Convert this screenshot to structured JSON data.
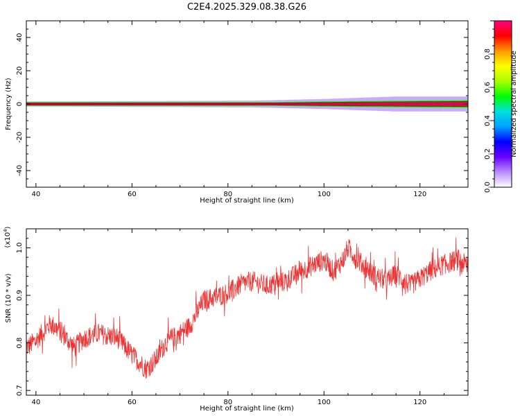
{
  "title": "C2E4.2025.329.08.38.G26",
  "chart_data": [
    {
      "type": "heatmap",
      "xlabel": "Height of straight line (km)",
      "ylabel": "Frequency (Hz)",
      "xlim": [
        38,
        130
      ],
      "ylim": [
        -50,
        50
      ],
      "xticks": [
        "40",
        "60",
        "80",
        "100",
        "120"
      ],
      "yticks": [
        "40",
        "20",
        "0",
        "-20",
        "-40"
      ],
      "band_center_hz": 0,
      "band_core_halfwidth_hz": [
        [
          38,
          1.0
        ],
        [
          90,
          1.0
        ],
        [
          105,
          1.5
        ],
        [
          130,
          2.0
        ]
      ],
      "band_spread_halfwidth_hz": [
        [
          38,
          1.5
        ],
        [
          85,
          2.0
        ],
        [
          100,
          3.0
        ],
        [
          105,
          3.5
        ],
        [
          115,
          4.5
        ],
        [
          130,
          4.5
        ]
      ],
      "grid": false
    },
    {
      "type": "line",
      "xlabel": "Height of straight line (km)",
      "ylabel": "SNR (10 * v/v)",
      "ylabel_exponent": "(x10",
      "ylabel_exponent_power": "4",
      "xlim": [
        38,
        130
      ],
      "ylim": [
        0.69,
        1.04
      ],
      "xticks": [
        "40",
        "60",
        "80",
        "100",
        "120"
      ],
      "yticks": [
        "1.0",
        "0.9",
        "0.8",
        "0.7"
      ],
      "line_color": "#ee3333",
      "trend": {
        "x": [
          38,
          40,
          43,
          45,
          48,
          50,
          53,
          55,
          57,
          60,
          62,
          63,
          65,
          67,
          70,
          72,
          75,
          77,
          80,
          83,
          85,
          88,
          90,
          92,
          95,
          98,
          100,
          102,
          104,
          105,
          107,
          110,
          113,
          115,
          118,
          120,
          122,
          125,
          128,
          130
        ],
        "y": [
          0.79,
          0.805,
          0.84,
          0.825,
          0.79,
          0.81,
          0.82,
          0.815,
          0.81,
          0.775,
          0.755,
          0.745,
          0.765,
          0.8,
          0.82,
          0.835,
          0.89,
          0.895,
          0.905,
          0.925,
          0.93,
          0.92,
          0.925,
          0.93,
          0.95,
          0.965,
          0.975,
          0.95,
          0.975,
          1.0,
          0.975,
          0.945,
          0.93,
          0.945,
          0.92,
          0.935,
          0.95,
          0.965,
          0.975,
          0.96
        ],
        "noise_amplitude": 0.022,
        "samples": 1400
      }
    }
  ],
  "colorbar": {
    "label": "Normalized spectral amplitude",
    "range": [
      0,
      1
    ],
    "ticks": [
      "0.0",
      "0.2",
      "0.4",
      "0.6",
      "0.8"
    ],
    "colors": [
      "#ffffff",
      "#b98cff",
      "#6a00ff",
      "#0000ff",
      "#00a0ff",
      "#00e0e0",
      "#00ff00",
      "#aaff00",
      "#ffff00",
      "#ff9900",
      "#ff0000",
      "#ff0080"
    ]
  }
}
